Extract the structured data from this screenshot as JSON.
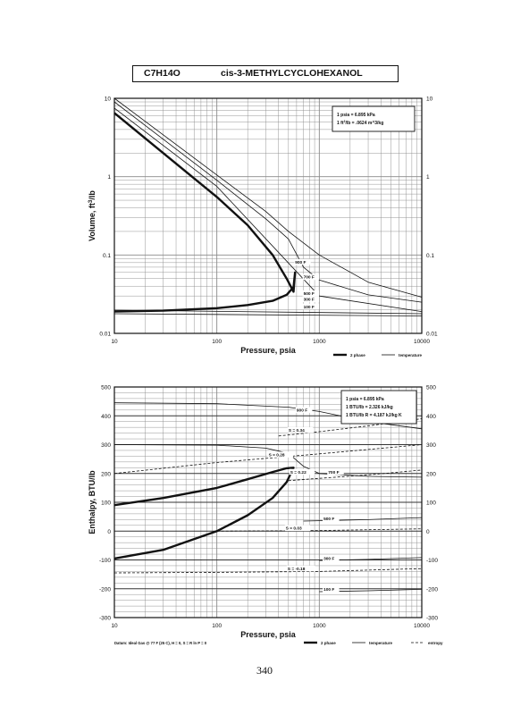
{
  "header": {
    "formula": "C7H14O",
    "compound": "cis-3-METHYLCYCLOHEXANOL"
  },
  "page_number": "340",
  "colors": {
    "ink": "#111111",
    "grid": "#8a8a8a",
    "paper": "#ffffff"
  },
  "chart_data": [
    {
      "type": "line",
      "id": "volume",
      "xlabel": "Pressure,  psia",
      "ylabel": "Volume, ft^3/lb",
      "xscale": "log",
      "yscale": "log",
      "xlim": [
        10,
        10000
      ],
      "ylim": [
        0.01,
        10
      ],
      "x_ticks": [
        10,
        100,
        1000,
        10000
      ],
      "x_tick_labels": [
        "10",
        "100",
        "1000",
        "10000"
      ],
      "y_ticks": [
        0.01,
        0.1,
        1,
        10
      ],
      "y_tick_labels": [
        "0.01",
        "0.1",
        "1",
        "10"
      ],
      "grid": true,
      "legend_placement": "bottom-right",
      "legend": [
        "2 phase",
        "temperature"
      ],
      "info_box": [
        "1 psia  =  6.895 kPa",
        "1 ft^3/lb  =  .0624 m^3/kg"
      ],
      "series": [
        {
          "name": "2 phase",
          "style": "thick",
          "x": [
            10,
            30,
            100,
            200,
            350,
            480,
            560,
            580,
            560,
            480,
            350,
            200,
            100,
            30,
            10
          ],
          "y": [
            6.5,
            2.0,
            0.55,
            0.24,
            0.1,
            0.05,
            0.034,
            0.06,
            0.039,
            0.031,
            0.026,
            0.023,
            0.021,
            0.0195,
            0.019
          ]
        },
        {
          "label": "100 F",
          "style": "thin",
          "x": [
            10,
            10000
          ],
          "y": [
            0.0178,
            0.0167
          ]
        },
        {
          "label": "300 F",
          "style": "thin",
          "x": [
            10,
            10000
          ],
          "y": [
            0.0198,
            0.0178
          ]
        },
        {
          "label": "500 F",
          "style": "thin",
          "x": [
            10,
            100,
            1000,
            10000
          ],
          "y": [
            7.5,
            0.75,
            0.03,
            0.019
          ]
        },
        {
          "label": "700 F",
          "style": "thin",
          "x": [
            10,
            100,
            300,
            500,
            700,
            1000,
            3000,
            10000
          ],
          "y": [
            9.0,
            0.9,
            0.29,
            0.16,
            0.07,
            0.048,
            0.031,
            0.025
          ]
        },
        {
          "label": "900 F",
          "style": "thin",
          "x": [
            10,
            100,
            300,
            500,
            1000,
            3000,
            10000
          ],
          "y": [
            10,
            1.05,
            0.36,
            0.2,
            0.1,
            0.045,
            0.029
          ]
        }
      ],
      "annotations": [
        {
          "text": "900 F",
          "x": 580,
          "y": 0.078
        },
        {
          "text": "700 F",
          "x": 700,
          "y": 0.05
        },
        {
          "text": "500 F",
          "x": 700,
          "y": 0.031
        },
        {
          "text": "300 F",
          "x": 700,
          "y": 0.026
        },
        {
          "text": "100 F",
          "x": 700,
          "y": 0.021
        }
      ]
    },
    {
      "type": "line",
      "id": "enthalpy",
      "xlabel": "Pressure,  psia",
      "ylabel": "Enthalpy, BTU/lb",
      "xscale": "log",
      "yscale": "linear",
      "xlim": [
        10,
        10000
      ],
      "ylim": [
        -300,
        500
      ],
      "x_ticks": [
        10,
        100,
        1000,
        10000
      ],
      "x_tick_labels": [
        "10",
        "100",
        "1000",
        "10000"
      ],
      "y_ticks": [
        -300,
        -200,
        -100,
        0,
        100,
        200,
        300,
        400,
        500
      ],
      "y_tick_labels": [
        "-300",
        "-200",
        "-100",
        "0",
        "100",
        "200",
        "300",
        "400",
        "500"
      ],
      "grid": true,
      "legend_placement": "bottom-right",
      "legend": [
        "2 phase",
        "temperature",
        "entropy"
      ],
      "info_box": [
        "1 psia  =  6.895 kPa",
        "1 BTU/lb  =  2.326 kJ/kg",
        "1 BTU/lb R  =  4.187 kJ/kg K"
      ],
      "datum_note": "Datum: Ideal Gas @ 77 F (25 C),  H = 0,  S = R ln P = 0",
      "series": [
        {
          "name": "2 phase",
          "style": "thick",
          "x": [
            10,
            30,
            100,
            200,
            350,
            480,
            560,
            480,
            350,
            200,
            100,
            30,
            10
          ],
          "y": [
            90,
            115,
            150,
            180,
            205,
            218,
            220,
            170,
            115,
            55,
            0,
            -65,
            -95
          ]
        },
        {
          "label": "900 F",
          "style": "thin",
          "x": [
            10,
            100,
            500,
            1000,
            3000,
            10000
          ],
          "y": [
            445,
            442,
            430,
            415,
            380,
            355
          ]
        },
        {
          "label": "700 F",
          "style": "thin",
          "x": [
            10,
            100,
            300,
            500,
            700,
            1000,
            3000,
            10000
          ],
          "y": [
            300,
            298,
            288,
            270,
            225,
            200,
            190,
            187
          ]
        },
        {
          "label": "500 F",
          "style": "thin",
          "x": [
            700,
            1000,
            3000,
            10000
          ],
          "y": [
            35,
            36,
            40,
            47
          ]
        },
        {
          "label": "300 F",
          "style": "thin",
          "x": [
            1000,
            3000,
            10000
          ],
          "y": [
            -102,
            -98,
            -92
          ]
        },
        {
          "label": "100 F",
          "style": "thin",
          "x": [
            1000,
            3000,
            10000
          ],
          "y": [
            -210,
            -207,
            -202
          ]
        },
        {
          "label": "S = 0.34",
          "style": "dashed",
          "x": [
            400,
            1000,
            3000,
            10000
          ],
          "y": [
            330,
            345,
            365,
            390
          ]
        },
        {
          "label": "S = 0.28",
          "style": "dashed",
          "x": [
            10,
            100,
            1000,
            10000
          ],
          "y": [
            200,
            238,
            268,
            300
          ]
        },
        {
          "label": "S = 0.22",
          "style": "dashed",
          "x": [
            500,
            1000,
            3000,
            10000
          ],
          "y": [
            175,
            183,
            195,
            212
          ]
        },
        {
          "label": "S = 0.03",
          "style": "dashed",
          "x": [
            100,
            1000,
            10000
          ],
          "y": [
            0,
            2,
            8
          ]
        },
        {
          "label": "S = -0.18",
          "style": "dashed",
          "x": [
            10,
            100,
            1000,
            10000
          ],
          "y": [
            -145,
            -143,
            -140,
            -130
          ]
        }
      ],
      "annotations": [
        {
          "text": "900 F",
          "x": 600,
          "y": 415
        },
        {
          "text": "S = 0.34",
          "x": 500,
          "y": 345
        },
        {
          "text": "S = 0.28",
          "x": 320,
          "y": 260
        },
        {
          "text": "S = 0.22",
          "x": 520,
          "y": 200
        },
        {
          "text": "700 F",
          "x": 1220,
          "y": 200
        },
        {
          "text": "500 F",
          "x": 1100,
          "y": 38
        },
        {
          "text": "S = 0.03",
          "x": 470,
          "y": 5
        },
        {
          "text": "300 F",
          "x": 1100,
          "y": -100
        },
        {
          "text": "S = -0.18",
          "x": 490,
          "y": -135
        },
        {
          "text": "100 F",
          "x": 1100,
          "y": -207
        }
      ]
    }
  ]
}
